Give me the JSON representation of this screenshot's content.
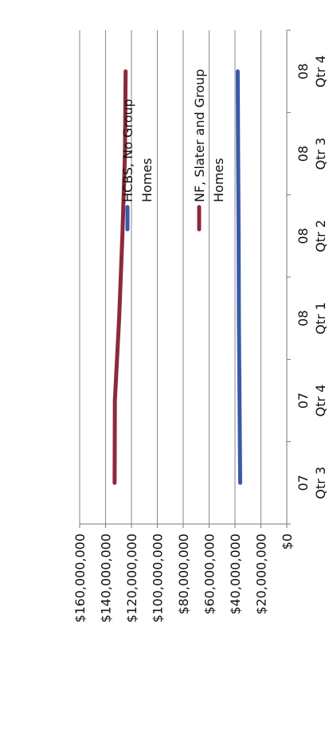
{
  "chart_data": {
    "type": "line",
    "title": "",
    "xlabel": "",
    "ylabel": "",
    "orientation": "rotated 90 degrees counter-clockwise",
    "categories": [
      "07 Qtr 3",
      "07 Qtr 4",
      "08 Qtr 1",
      "08 Qtr 2",
      "08 Qtr 3",
      "08 Qtr 4"
    ],
    "category_lines": [
      [
        "07",
        "Qtr 3"
      ],
      [
        "07",
        "Qtr 4"
      ],
      [
        "08",
        "Qtr 1"
      ],
      [
        "08",
        "Qtr 2"
      ],
      [
        "08",
        "Qtr 3"
      ],
      [
        "08",
        "Qtr 4"
      ]
    ],
    "ylim": [
      0,
      160000000
    ],
    "y_ticks": [
      0,
      20000000,
      40000000,
      60000000,
      80000000,
      100000000,
      120000000,
      140000000,
      160000000
    ],
    "y_tick_labels": [
      "$0",
      "$20,000,000",
      "$40,000,000",
      "$60,000,000",
      "$80,000,000",
      "$100,000,000",
      "$120,000,000",
      "$140,000,000",
      "$160,000,000"
    ],
    "grid": true,
    "legend_position": "right",
    "series": [
      {
        "name": "HCBS, No Group Homes",
        "legend_lines": [
          "HCBS, No Group",
          "Homes"
        ],
        "color": "#3a5aa8",
        "values": [
          36000000,
          36500000,
          37000000,
          37200000,
          37600000,
          37900000
        ]
      },
      {
        "name": "NF, Slater and Group Homes",
        "legend_lines": [
          "NF, Slater and Group",
          "Homes"
        ],
        "color": "#8c2a3c",
        "values": [
          133000000,
          132800000,
          129500000,
          127000000,
          125000000,
          124500000
        ]
      }
    ]
  }
}
